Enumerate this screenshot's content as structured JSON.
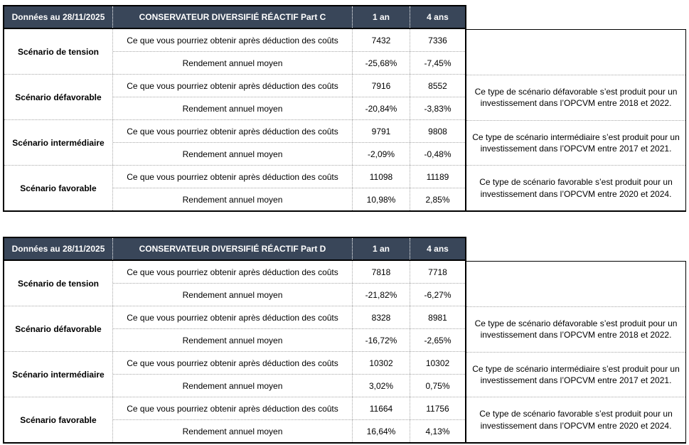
{
  "colors": {
    "header_bg": "#394659",
    "header_text": "#ffffff",
    "outer_border": "#000000",
    "inner_dotted_border": "#a6a6a6",
    "body_text": "#000000"
  },
  "row_labels": {
    "obtain": "Ce que vous pourriez obtenir après déduction des coûts",
    "rendement": "Rendement annuel moyen"
  },
  "tables": [
    {
      "date_label": "Données au 28/11/2025",
      "title": "CONSERVATEUR DIVERSIFIÉ RÉACTIF Part C",
      "col_1an": "1 an",
      "col_4ans": "4 ans",
      "scenarios": [
        {
          "name": "Scénario de tension",
          "obtain_1an": "7432",
          "obtain_4ans": "7336",
          "rend_1an": "-25,68%",
          "rend_4ans": "-7,45%",
          "note": ""
        },
        {
          "name": "Scénario défavorable",
          "obtain_1an": "7916",
          "obtain_4ans": "8552",
          "rend_1an": "-20,84%",
          "rend_4ans": "-3,83%",
          "note": "Ce type de scénario défavorable s’est produit pour un investissement dans l’OPCVM entre 2018 et 2022."
        },
        {
          "name": "Scénario intermédiaire",
          "obtain_1an": "9791",
          "obtain_4ans": "9808",
          "rend_1an": "-2,09%",
          "rend_4ans": "-0,48%",
          "note": "Ce type de scénario intermédiaire s’est produit pour un investissement dans l’OPCVM entre 2017 et 2021."
        },
        {
          "name": "Scénario favorable",
          "obtain_1an": "11098",
          "obtain_4ans": "11189",
          "rend_1an": "10,98%",
          "rend_4ans": "2,85%",
          "note": "Ce type de scénario favorable s’est produit pour un investissement dans l’OPCVM entre 2020 et 2024."
        }
      ]
    },
    {
      "date_label": "Données au 28/11/2025",
      "title": "CONSERVATEUR DIVERSIFIÉ RÉACTIF Part D",
      "col_1an": "1 an",
      "col_4ans": "4 ans",
      "scenarios": [
        {
          "name": "Scénario de tension",
          "obtain_1an": "7818",
          "obtain_4ans": "7718",
          "rend_1an": "-21,82%",
          "rend_4ans": "-6,27%",
          "note": ""
        },
        {
          "name": "Scénario défavorable",
          "obtain_1an": "8328",
          "obtain_4ans": "8981",
          "rend_1an": "-16,72%",
          "rend_4ans": "-2,65%",
          "note": "Ce type de scénario défavorable s’est produit pour un investissement dans l’OPCVM entre 2018 et 2022."
        },
        {
          "name": "Scénario intermédiaire",
          "obtain_1an": "10302",
          "obtain_4ans": "10302",
          "rend_1an": "3,02%",
          "rend_4ans": "0,75%",
          "note": "Ce type de scénario intermédiaire s’est produit pour un investissement dans l’OPCVM entre 2017 et 2021."
        },
        {
          "name": "Scénario favorable",
          "obtain_1an": "11664",
          "obtain_4ans": "11756",
          "rend_1an": "16,64%",
          "rend_4ans": "4,13%",
          "note": "Ce type de scénario favorable s’est produit pour un investissement dans l’OPCVM entre 2020 et 2024."
        }
      ]
    }
  ]
}
